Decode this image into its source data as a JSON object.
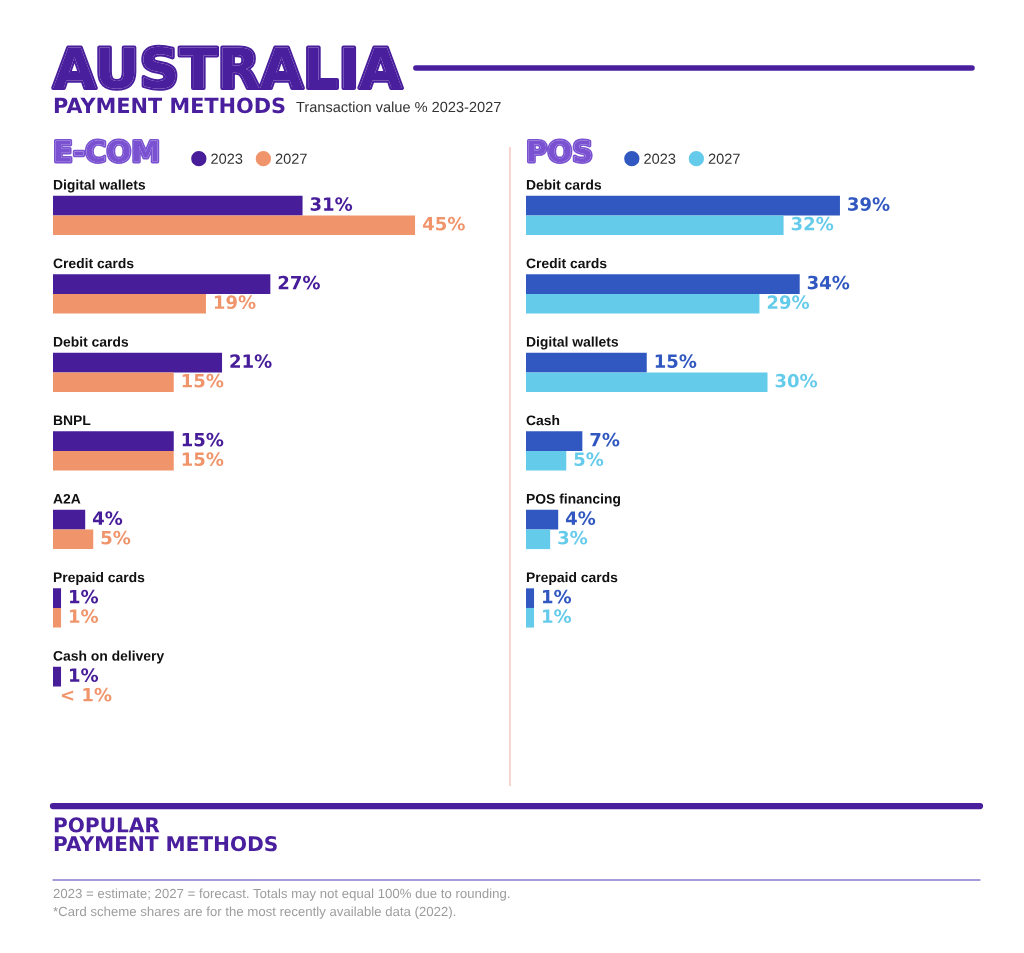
{
  "chart_data": [
    {
      "type": "other",
      "title": "AUSTRALIA",
      "subtitle": "PAYMENT METHODS",
      "annotations": [
        "Transaction value % 2023-2027"
      ]
    },
    {
      "type": "bar",
      "orientation": "horizontal",
      "title": "E-COM",
      "categories": [
        "Digital wallets",
        "Credit cards",
        "Debit cards",
        "BNPL",
        "A2A",
        "Prepaid cards",
        "Cash on delivery"
      ],
      "series": [
        {
          "name": "2023",
          "color": "#471d9a",
          "values": [
            31,
            27,
            21,
            15,
            4,
            1,
            1
          ],
          "value_labels": [
            "31%",
            "27%",
            "21%",
            "15%",
            "4%",
            "1%",
            "1%"
          ]
        },
        {
          "name": "2027",
          "color": "#f0956b",
          "values": [
            45,
            19,
            15,
            15,
            5,
            1,
            null
          ],
          "value_labels": [
            "45%",
            "19%",
            "15%",
            "15%",
            "5%",
            "1%",
            "< 1%"
          ]
        }
      ],
      "legend": "top",
      "tick_labels": "y"
    },
    {
      "type": "bar",
      "orientation": "horizontal",
      "title": "POS",
      "categories": [
        "Debit cards",
        "Credit cards",
        "Digital wallets",
        "Cash",
        "POS financing",
        "Prepaid cards"
      ],
      "series": [
        {
          "name": "2023",
          "color": "#3158c0",
          "values": [
            39,
            34,
            15,
            7,
            4,
            1
          ],
          "value_labels": [
            "39%",
            "34%",
            "15%",
            "7%",
            "4%",
            "1%"
          ]
        },
        {
          "name": "2027",
          "color": "#65cbeb",
          "values": [
            32,
            29,
            30,
            5,
            3,
            1
          ],
          "value_labels": [
            "32%",
            "29%",
            "30%",
            "5%",
            "3%",
            "1%"
          ]
        }
      ],
      "legend": "top",
      "tick_labels": "y"
    },
    {
      "type": "other",
      "title": "POPULAR\nPAYMENT METHODS",
      "annotations": [
        "2023 = estimate; 2027 = forecast. Totals may not equal 100% due to rounding.",
        "*Card scheme shares are for the most recently available data (2022)."
      ]
    }
  ]
}
